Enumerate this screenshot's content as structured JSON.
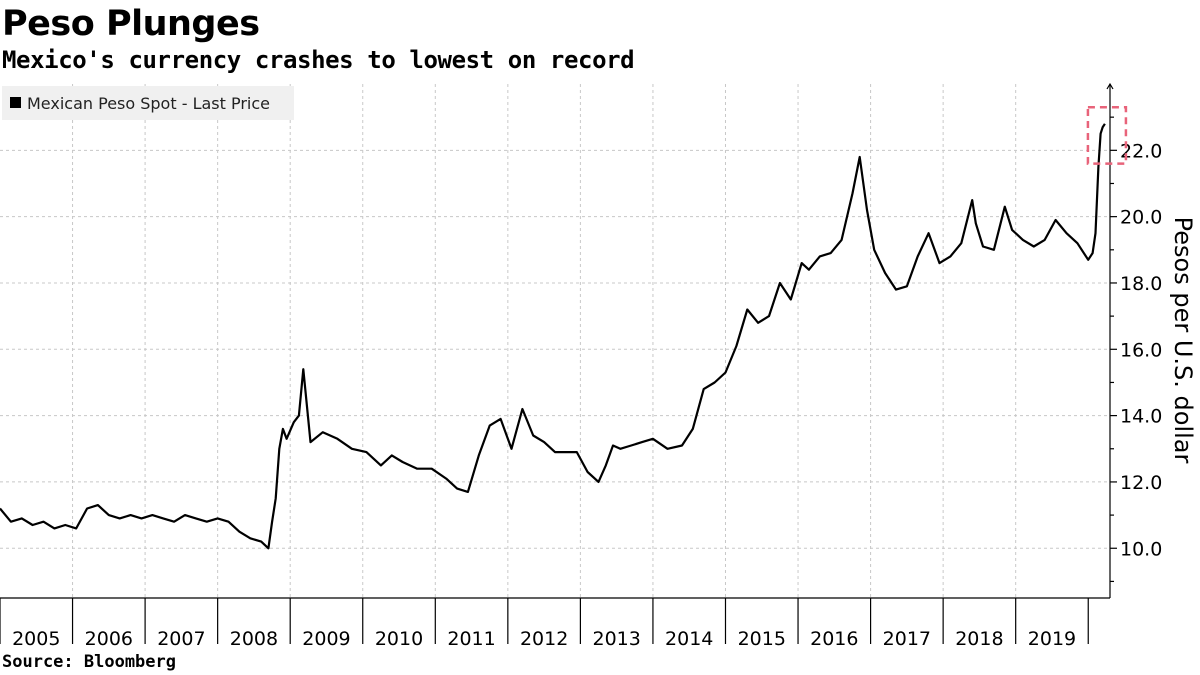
{
  "chart_data": {
    "type": "line",
    "title": "Peso Plunges",
    "subtitle": "Mexico's currency crashes to lowest on record",
    "source": "Source: Bloomberg",
    "ylabel": "Pesos per U.S. dollar",
    "xlabel": "",
    "ylim": [
      8.5,
      24.0
    ],
    "xlim": [
      2005.0,
      2020.3
    ],
    "y_ticks": [
      10.0,
      12.0,
      14.0,
      16.0,
      18.0,
      20.0,
      22.0
    ],
    "y_tick_labels": [
      "10.0",
      "12.0",
      "14.0",
      "16.0",
      "18.0",
      "20.0",
      "22.0"
    ],
    "x_tick_labels": [
      "2005",
      "2006",
      "2007",
      "2008",
      "2009",
      "2010",
      "2011",
      "2012",
      "2013",
      "2014",
      "2015",
      "2016",
      "2017",
      "2018",
      "2019"
    ],
    "y_axis_side": "right",
    "grid": true,
    "legend_placement": "top-left",
    "annotation": "dashed red box around the 2020 peak",
    "colors": {
      "line": "#000000",
      "highlight": "#e8637a",
      "grid": "#c8c8c8",
      "legend_bg": "#f0f0f0"
    },
    "series": [
      {
        "name": "Mexican Peso Spot - Last Price",
        "x": [
          2005.0,
          2005.15,
          2005.3,
          2005.45,
          2005.6,
          2005.75,
          2005.9,
          2006.05,
          2006.2,
          2006.35,
          2006.5,
          2006.65,
          2006.8,
          2006.95,
          2007.1,
          2007.25,
          2007.4,
          2007.55,
          2007.7,
          2007.85,
          2008.0,
          2008.15,
          2008.3,
          2008.45,
          2008.6,
          2008.7,
          2008.75,
          2008.8,
          2008.85,
          2008.9,
          2008.95,
          2009.05,
          2009.12,
          2009.18,
          2009.28,
          2009.45,
          2009.65,
          2009.85,
          2010.05,
          2010.25,
          2010.4,
          2010.55,
          2010.75,
          2010.95,
          2011.15,
          2011.3,
          2011.45,
          2011.6,
          2011.75,
          2011.9,
          2012.05,
          2012.2,
          2012.35,
          2012.5,
          2012.65,
          2012.8,
          2012.95,
          2013.1,
          2013.25,
          2013.35,
          2013.45,
          2013.55,
          2013.7,
          2013.85,
          2014.0,
          2014.2,
          2014.4,
          2014.55,
          2014.7,
          2014.85,
          2015.0,
          2015.15,
          2015.3,
          2015.45,
          2015.6,
          2015.75,
          2015.9,
          2016.05,
          2016.15,
          2016.3,
          2016.45,
          2016.6,
          2016.75,
          2016.85,
          2016.95,
          2017.05,
          2017.2,
          2017.35,
          2017.5,
          2017.65,
          2017.8,
          2017.95,
          2018.1,
          2018.25,
          2018.4,
          2018.45,
          2018.55,
          2018.7,
          2018.85,
          2018.95,
          2019.1,
          2019.25,
          2019.4,
          2019.55,
          2019.7,
          2019.85,
          2020.0,
          2020.06,
          2020.1,
          2020.14,
          2020.17,
          2020.2,
          2020.23
        ],
        "y": [
          11.2,
          10.8,
          10.9,
          10.7,
          10.8,
          10.6,
          10.7,
          10.6,
          11.2,
          11.3,
          11.0,
          10.9,
          11.0,
          10.9,
          11.0,
          10.9,
          10.8,
          11.0,
          10.9,
          10.8,
          10.9,
          10.8,
          10.5,
          10.3,
          10.2,
          10.0,
          10.8,
          11.5,
          13.0,
          13.6,
          13.3,
          13.8,
          14.0,
          15.4,
          13.2,
          13.5,
          13.3,
          13.0,
          12.9,
          12.5,
          12.8,
          12.6,
          12.4,
          12.4,
          12.1,
          11.8,
          11.7,
          12.8,
          13.7,
          13.9,
          13.0,
          14.2,
          13.4,
          13.2,
          12.9,
          12.9,
          12.9,
          12.3,
          12.0,
          12.5,
          13.1,
          13.0,
          13.1,
          13.2,
          13.3,
          13.0,
          13.1,
          13.6,
          14.8,
          15.0,
          15.3,
          16.1,
          17.2,
          16.8,
          17.0,
          18.0,
          17.5,
          18.6,
          18.4,
          18.8,
          18.9,
          19.3,
          20.7,
          21.8,
          20.2,
          19.0,
          18.3,
          17.8,
          17.9,
          18.8,
          19.5,
          18.6,
          18.8,
          19.2,
          20.5,
          19.8,
          19.1,
          19.0,
          20.3,
          19.6,
          19.3,
          19.1,
          19.3,
          19.9,
          19.5,
          19.2,
          18.7,
          18.9,
          19.5,
          21.5,
          22.5,
          22.7,
          22.8
        ]
      }
    ]
  }
}
